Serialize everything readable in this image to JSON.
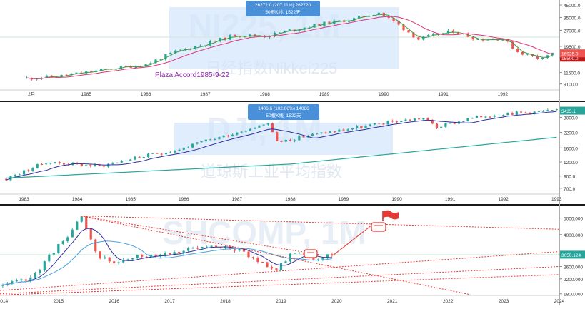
{
  "colors": {
    "up": "#26a69a",
    "down": "#ef5350",
    "ma_fast": "#3f9b3f",
    "ma_slow": "#e0337a",
    "ma_blue": "#2e2e9e",
    "ma_teal": "#26a69a",
    "ma_light": "#4aa3df",
    "select_fill": "#cfe3fa",
    "tooltip_bg": "#4a90d9",
    "trend": "#e53935",
    "divider": "#1a1a1a"
  },
  "chart_data": [
    {
      "type": "candlestick",
      "title": "",
      "watermark": "NI225, 1M",
      "watermark_sub": "日经指数Nikkei225",
      "x_ticks": [
        "2月",
        "1985",
        "1986",
        "1987",
        "1988",
        "1989",
        "1990",
        "1991",
        "1992"
      ],
      "y_ticks": [
        "45000.0",
        "35000.0",
        "27000.0",
        "19500.0",
        "15500.0",
        "11500.0",
        "9100.0"
      ],
      "y_scale": "log",
      "last_price": "16925.0",
      "marker_price": "15500.0",
      "annotation": "Plaza Accord1985-9-22",
      "measure": {
        "line1": "26272.0 (207.11%) 262720",
        "line2": "50根K线, 1522天"
      },
      "series": [
        {
          "name": "Nikkei 225 close",
          "x": [
            "1984-01",
            "1984-07",
            "1985-01",
            "1985-07",
            "1986-01",
            "1986-07",
            "1987-01",
            "1987-07",
            "1988-01",
            "1988-07",
            "1989-01",
            "1989-07",
            "1989-12",
            "1990-04",
            "1990-08",
            "1990-10",
            "1991-03",
            "1991-08",
            "1992-01",
            "1992-04",
            "1992-08",
            "1992-11"
          ],
          "values": [
            10200,
            10600,
            11500,
            12600,
            13500,
            17500,
            20500,
            24500,
            24000,
            27500,
            31000,
            34000,
            38900,
            30000,
            22500,
            23800,
            26500,
            22500,
            22800,
            17500,
            15500,
            16925
          ]
        }
      ]
    },
    {
      "type": "candlestick",
      "title": "",
      "watermark": "DJI, 1M",
      "watermark_sub": "道琼斯工业平均指数",
      "x_ticks": [
        "1983",
        "1984",
        "1985",
        "1986",
        "1987",
        "1988",
        "1989",
        "1990",
        "1991",
        "1992",
        "1993"
      ],
      "y_ticks": [
        "3000.0",
        "2200.0",
        "1600.0",
        "1200.0",
        "900.0",
        "700.0"
      ],
      "y_scale": "log",
      "last_price": "3435.1",
      "measure": {
        "line1": "1406.6 (102.06%) 14066",
        "line2": "50根K线, 1522天"
      },
      "series": [
        {
          "name": "Dow Jones close",
          "x": [
            "1982-09",
            "1983-06",
            "1984-06",
            "1985-01",
            "1985-12",
            "1986-06",
            "1987-01",
            "1987-08",
            "1987-10",
            "1988-06",
            "1989-06",
            "1989-12",
            "1990-07",
            "1990-10",
            "1991-06",
            "1992-01",
            "1992-06",
            "1993-01"
          ],
          "values": [
            850,
            1200,
            1100,
            1280,
            1550,
            1850,
            2200,
            2700,
            1800,
            2100,
            2500,
            2750,
            2950,
            2450,
            2950,
            3250,
            3300,
            3435
          ]
        }
      ]
    },
    {
      "type": "candlestick",
      "title": "",
      "watermark": "SHCOMP, 1M",
      "x_ticks": [
        "2014",
        "2015",
        "2016",
        "2017",
        "2018",
        "2019",
        "2020",
        "2021",
        "2022",
        "2023",
        "2024"
      ],
      "y_ticks": [
        "5000.000",
        "4000.000",
        "3050.124",
        "2600.000",
        "2200.000",
        "1800.000"
      ],
      "y_scale": "log",
      "last_price": "3050.124",
      "series": [
        {
          "name": "Shanghai Composite close",
          "x": [
            "2014-01",
            "2014-07",
            "2014-12",
            "2015-06",
            "2015-09",
            "2016-01",
            "2016-07",
            "2017-01",
            "2017-11",
            "2018-01",
            "2018-12",
            "2019-04",
            "2019-08",
            "2019-12"
          ],
          "values": [
            2000,
            2200,
            3200,
            5000,
            3100,
            2700,
            3000,
            3150,
            3400,
            3500,
            2500,
            3200,
            2900,
            3050
          ]
        }
      ]
    }
  ]
}
